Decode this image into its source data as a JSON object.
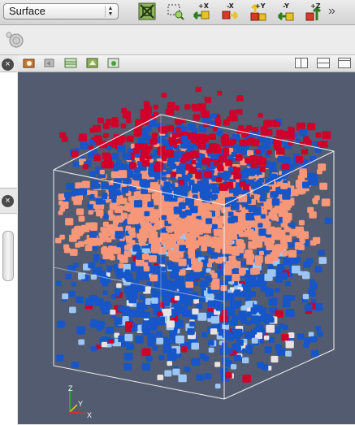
{
  "toolbar": {
    "representation_value": "Surface",
    "buttons": [
      {
        "name": "reset-camera-icon",
        "label": ""
      },
      {
        "name": "zoom-to-box-icon",
        "label": ""
      },
      {
        "name": "view-plus-x-icon",
        "label": "+X"
      },
      {
        "name": "view-minus-x-icon",
        "label": "-X"
      },
      {
        "name": "view-plus-y-icon",
        "label": "+Y"
      },
      {
        "name": "view-minus-y-icon",
        "label": "-Y"
      },
      {
        "name": "view-plus-z-icon",
        "label": "+Z"
      }
    ],
    "overflow": "»"
  },
  "left_panel": {
    "close_glyph": "×"
  },
  "axes": {
    "z": "Z",
    "y": "Y",
    "x": "X"
  },
  "colors": {
    "background": "#525b6f",
    "deep_blue": "#1656c8",
    "salmon": "#f6977a",
    "red": "#d0002a",
    "light_blue": "#9cc7f5",
    "pale": "#e8e2e2"
  }
}
